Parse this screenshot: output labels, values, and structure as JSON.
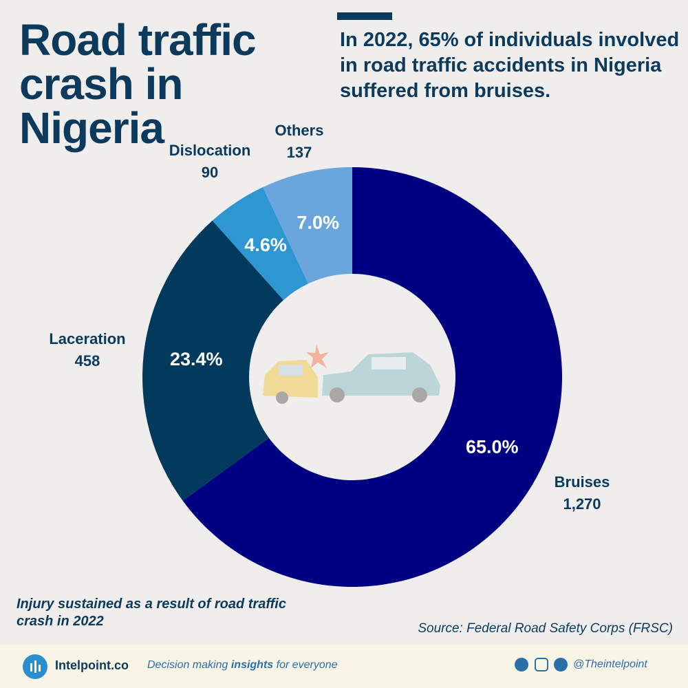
{
  "chart_data": {
    "type": "pie",
    "title": "Road traffic crash in Nigeria",
    "subtitle": "In 2022, 65% of individuals involved in road traffic accidents in Nigeria suffered from bruises.",
    "caption": "Injury sustained as a result of road traffic crash in 2022",
    "source": "Source: Federal Road Safety Corps (FRSC)",
    "categories": [
      "Bruises",
      "Laceration",
      "Dislocation",
      "Others"
    ],
    "values": [
      1270,
      458,
      90,
      137
    ],
    "value_labels": [
      "1,270",
      "458",
      "90",
      "137"
    ],
    "shares": [
      65.0,
      23.4,
      4.6,
      7.0
    ],
    "share_labels": [
      "65.0%",
      "23.4%",
      "4.6%",
      "7.0%"
    ],
    "colors": [
      "#000080",
      "#023a5e",
      "#2e96d0",
      "#6aa6dc"
    ]
  },
  "footer": {
    "brand": "Intelpoint.co",
    "tagline": [
      "Decision making",
      "insights",
      "for everyone"
    ],
    "handle": "@Theintelpoint"
  }
}
